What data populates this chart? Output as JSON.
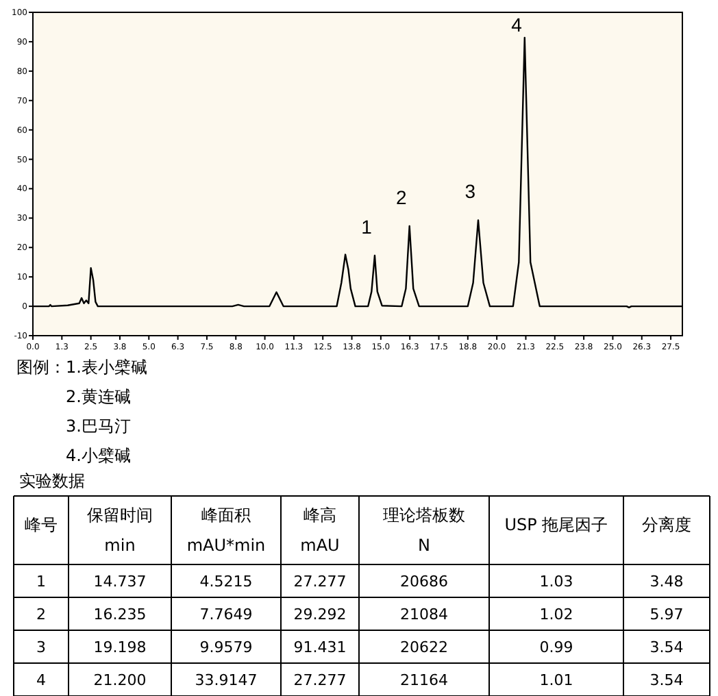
{
  "chart_data": [
    {
      "type": "line",
      "xlim": [
        0,
        28
      ],
      "ylim": [
        -10,
        100
      ],
      "xticks": [
        {
          "value": 0,
          "label": "0.0"
        },
        {
          "value": 1.25,
          "label": "1.3"
        },
        {
          "value": 2.5,
          "label": "2.5"
        },
        {
          "value": 3.75,
          "label": "3.8"
        },
        {
          "value": 5,
          "label": "5.0"
        },
        {
          "value": 6.25,
          "label": "6.3"
        },
        {
          "value": 7.5,
          "label": "7.5"
        },
        {
          "value": 8.75,
          "label": "8.8"
        },
        {
          "value": 10,
          "label": "10.0"
        },
        {
          "value": 11.25,
          "label": "11.3"
        },
        {
          "value": 12.5,
          "label": "12.5"
        },
        {
          "value": 13.75,
          "label": "13.8"
        },
        {
          "value": 15,
          "label": "15.0"
        },
        {
          "value": 16.25,
          "label": "16.3"
        },
        {
          "value": 17.5,
          "label": "17.5"
        },
        {
          "value": 18.75,
          "label": "18.8"
        },
        {
          "value": 20,
          "label": "20.0"
        },
        {
          "value": 21.25,
          "label": "21.3"
        },
        {
          "value": 22.5,
          "label": "22.5"
        },
        {
          "value": 23.75,
          "label": "23.8"
        },
        {
          "value": 25,
          "label": "25.0"
        },
        {
          "value": 26.25,
          "label": "26.3"
        },
        {
          "value": 27.5,
          "label": "27.5"
        }
      ],
      "yticks": [
        -10,
        0,
        10,
        20,
        30,
        40,
        50,
        60,
        70,
        80,
        90,
        100
      ],
      "grid": false,
      "marker": "none",
      "line_style": "solid",
      "series": [
        {
          "color": "#000000",
          "x": [
            0,
            0.7,
            0.75,
            0.8,
            1.5,
            2.0,
            2.1,
            2.2,
            2.3,
            2.4,
            2.5,
            2.6,
            2.7,
            2.8,
            5,
            8.6,
            8.85,
            9.1,
            10.2,
            10.5,
            10.8,
            13.1,
            13.3,
            13.47,
            13.6,
            13.7,
            13.9,
            14.45,
            14.6,
            14.737,
            14.85,
            15.05,
            15.9,
            16.08,
            16.235,
            16.4,
            16.65,
            18.75,
            18.98,
            19.198,
            19.42,
            19.7,
            20.7,
            20.95,
            21.2,
            21.45,
            21.85,
            25.6,
            25.7,
            25.8,
            28
          ],
          "values": [
            0,
            0,
            0.5,
            0,
            0.3,
            1,
            2.8,
            1,
            2,
            1,
            13,
            9,
            1.5,
            0,
            0,
            0,
            0.5,
            0,
            0,
            4.8,
            0,
            0,
            8,
            17.6,
            12.5,
            6,
            0,
            0,
            5,
            17.3,
            5,
            0.2,
            0,
            6,
            27.3,
            6,
            0,
            0,
            8,
            29.3,
            8,
            0,
            0,
            15,
            91.4,
            15,
            0,
            0,
            -0.4,
            0,
            0
          ]
        }
      ],
      "annotations": [
        "图例：1.表小檗碱",
        "2.黄连碱",
        "3.巴马汀",
        "4.小檗碱",
        {
          "text": "1",
          "x": 14.737,
          "y": 17.3
        },
        {
          "text": "2",
          "x": 16.235,
          "y": 27.3
        },
        {
          "text": "3",
          "x": 19.198,
          "y": 29.3
        },
        {
          "text": "4",
          "x": 21.2,
          "y": 91.4
        }
      ]
    },
    {
      "type": "heatmap",
      "title": "实验数据",
      "ylabel": "峰号",
      "data_labels": true,
      "categories": [
        "保留时间\nmin",
        "峰面积\nmAU*min",
        "峰高\nmAU",
        "理论塔板数\nN",
        "USP 拖尾因子",
        "分离度"
      ],
      "y_categories": [
        "1",
        "2",
        "3",
        "4"
      ],
      "cells": [
        [
          null,
          null,
          null,
          null,
          null,
          null
        ],
        [
          null,
          null,
          null,
          null,
          null,
          null
        ],
        [
          null,
          null,
          null,
          null,
          null,
          null
        ],
        [
          null,
          null,
          null,
          null,
          null,
          null
        ]
      ],
      "cell_labels": [
        [
          "14.737",
          "4.5215",
          "27.277",
          "20686",
          "1.03",
          "3.48"
        ],
        [
          "16.235",
          "7.7649",
          "29.292",
          "21084",
          "1.02",
          "5.97"
        ],
        [
          "19.198",
          "9.9579",
          "91.431",
          "20622",
          "0.99",
          "3.54"
        ],
        [
          "21.200",
          "33.9147",
          "27.277",
          "21164",
          "1.01",
          "3.54"
        ]
      ]
    }
  ]
}
